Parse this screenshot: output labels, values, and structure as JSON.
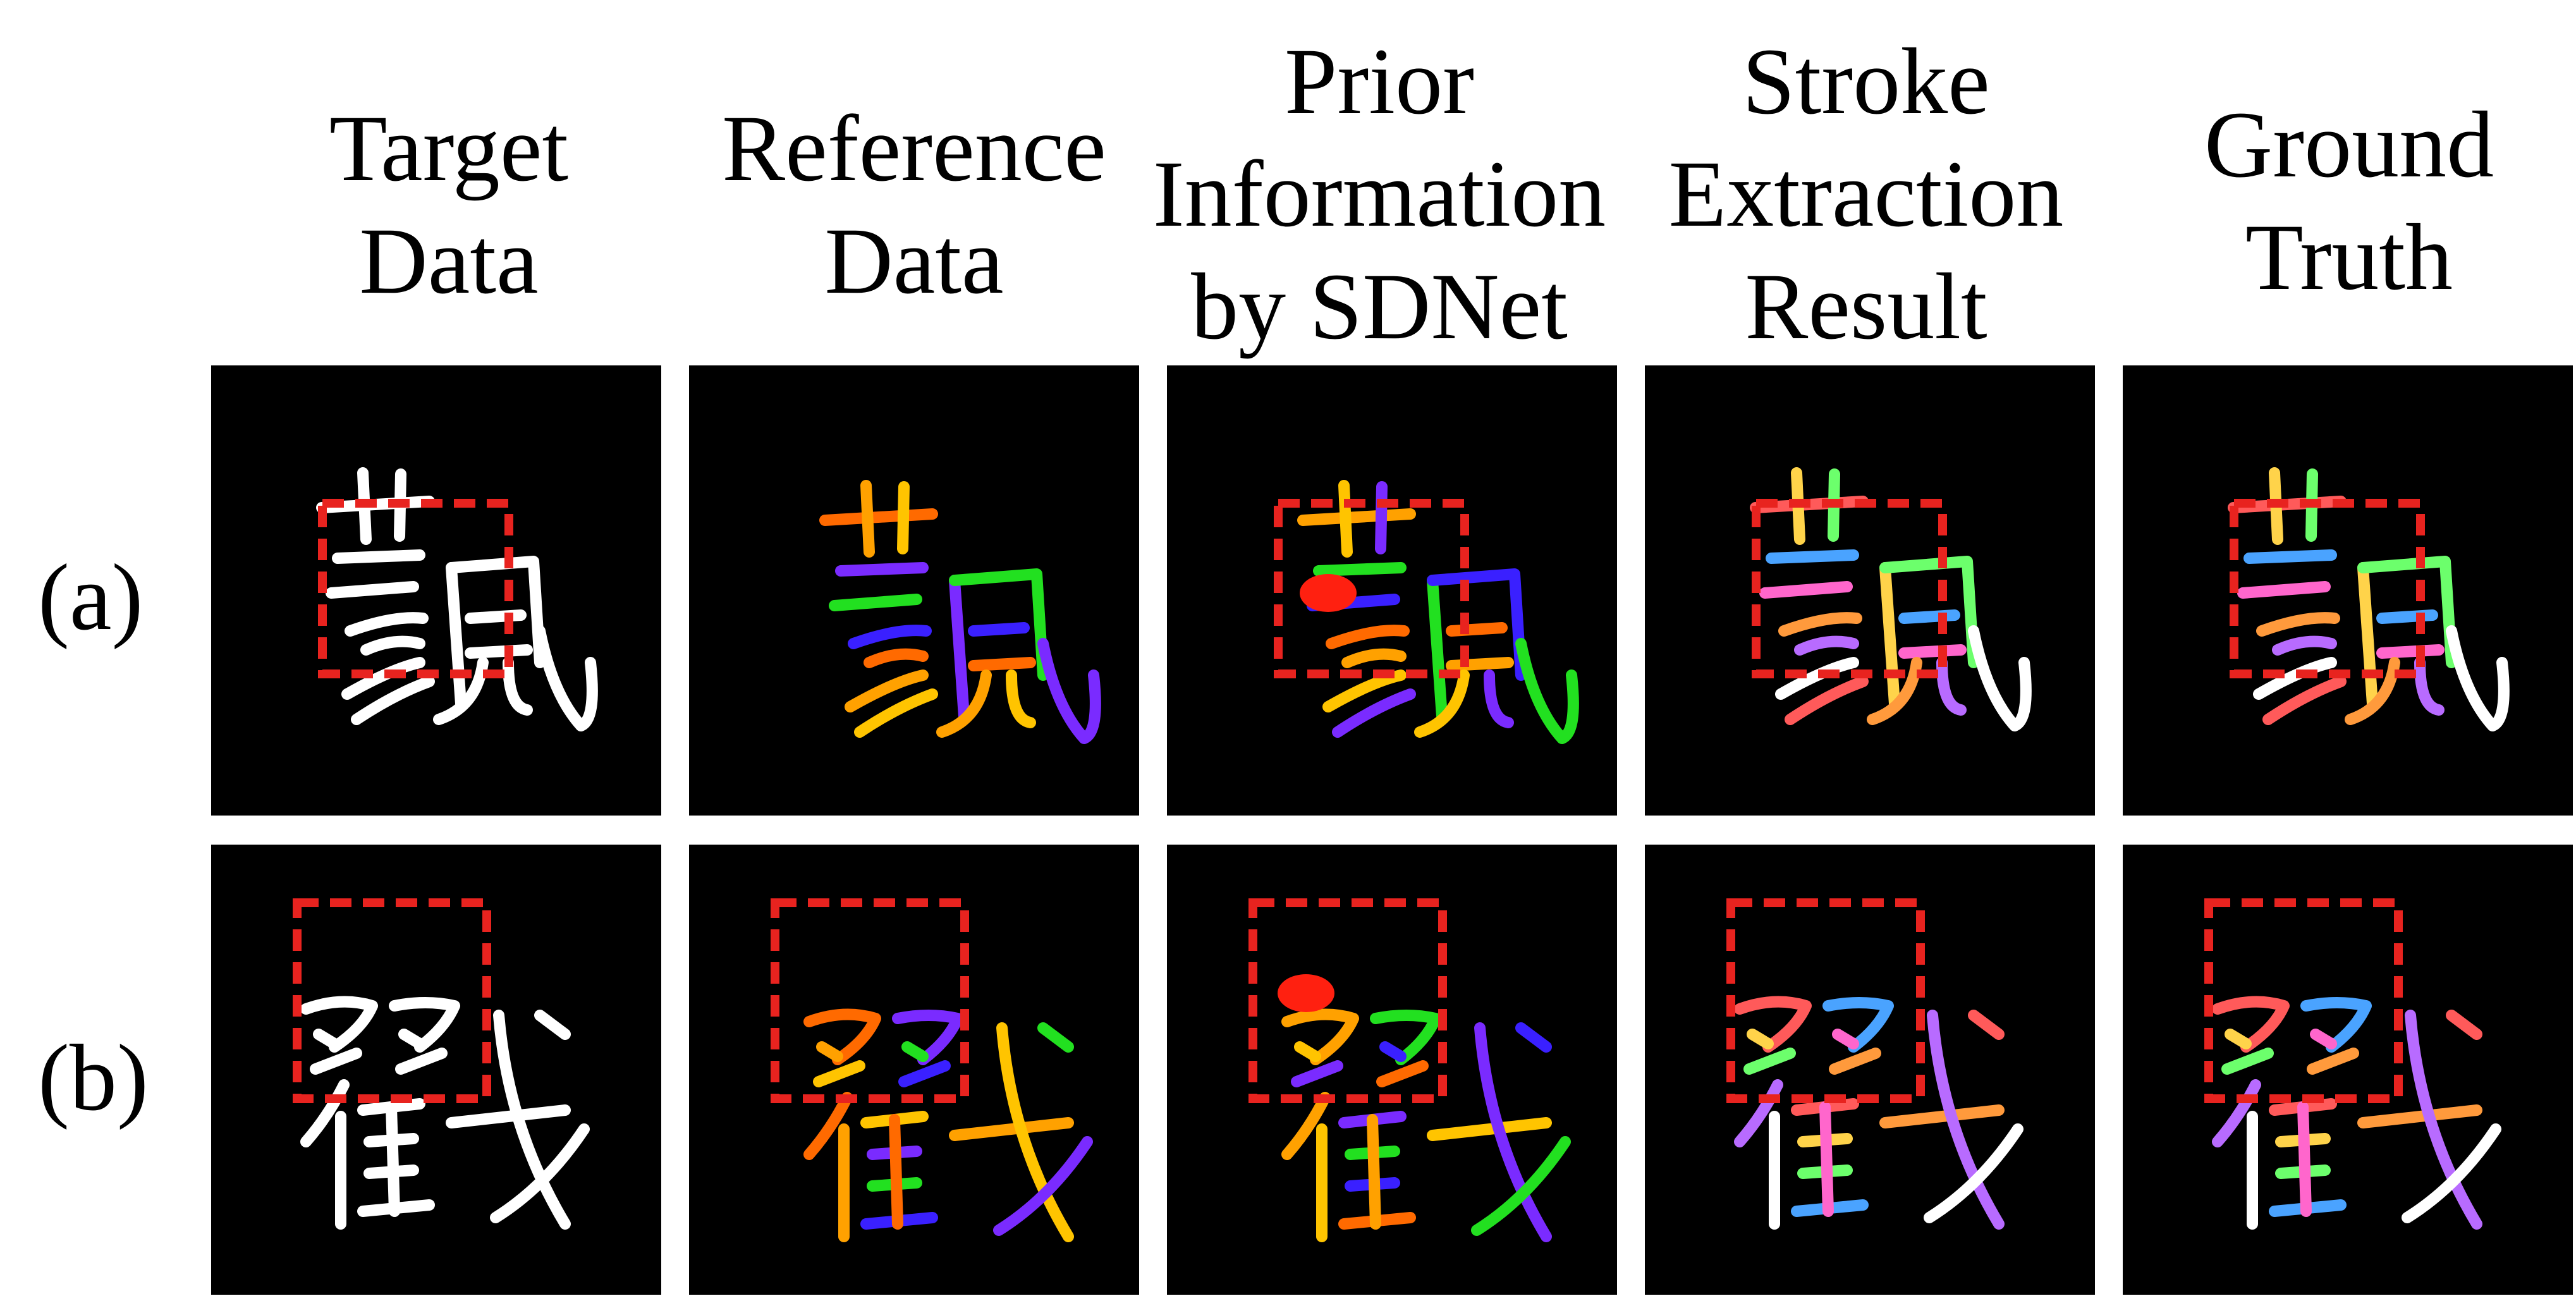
{
  "columns": [
    {
      "id": "target",
      "label": "Target\nData"
    },
    {
      "id": "reference",
      "label": "Reference\nData"
    },
    {
      "id": "prior",
      "label": "Prior\nInformation\nby SDNet"
    },
    {
      "id": "extraction",
      "label": "Stroke\nExtraction\nResult"
    },
    {
      "id": "gt",
      "label": "Ground\nTruth"
    }
  ],
  "rows": [
    {
      "id": "a",
      "label": "(a)",
      "character": "藐"
    },
    {
      "id": "b",
      "label": "(b)",
      "character": "戳"
    }
  ],
  "highlight_box_color": "#e8231f",
  "panel_background": "#000000",
  "target_stroke_color": "#ffffff",
  "reference_palette": [
    "#ff6a00",
    "#ffa100",
    "#ffc400",
    "#7a2bff",
    "#22e020",
    "#3a20ff"
  ],
  "result_palette": [
    "#ff5a5a",
    "#ffd34a",
    "#6cff6c",
    "#4aa3ff",
    "#ff66cc",
    "#ff9a3c",
    "#b86bff",
    "#ffffff"
  ]
}
